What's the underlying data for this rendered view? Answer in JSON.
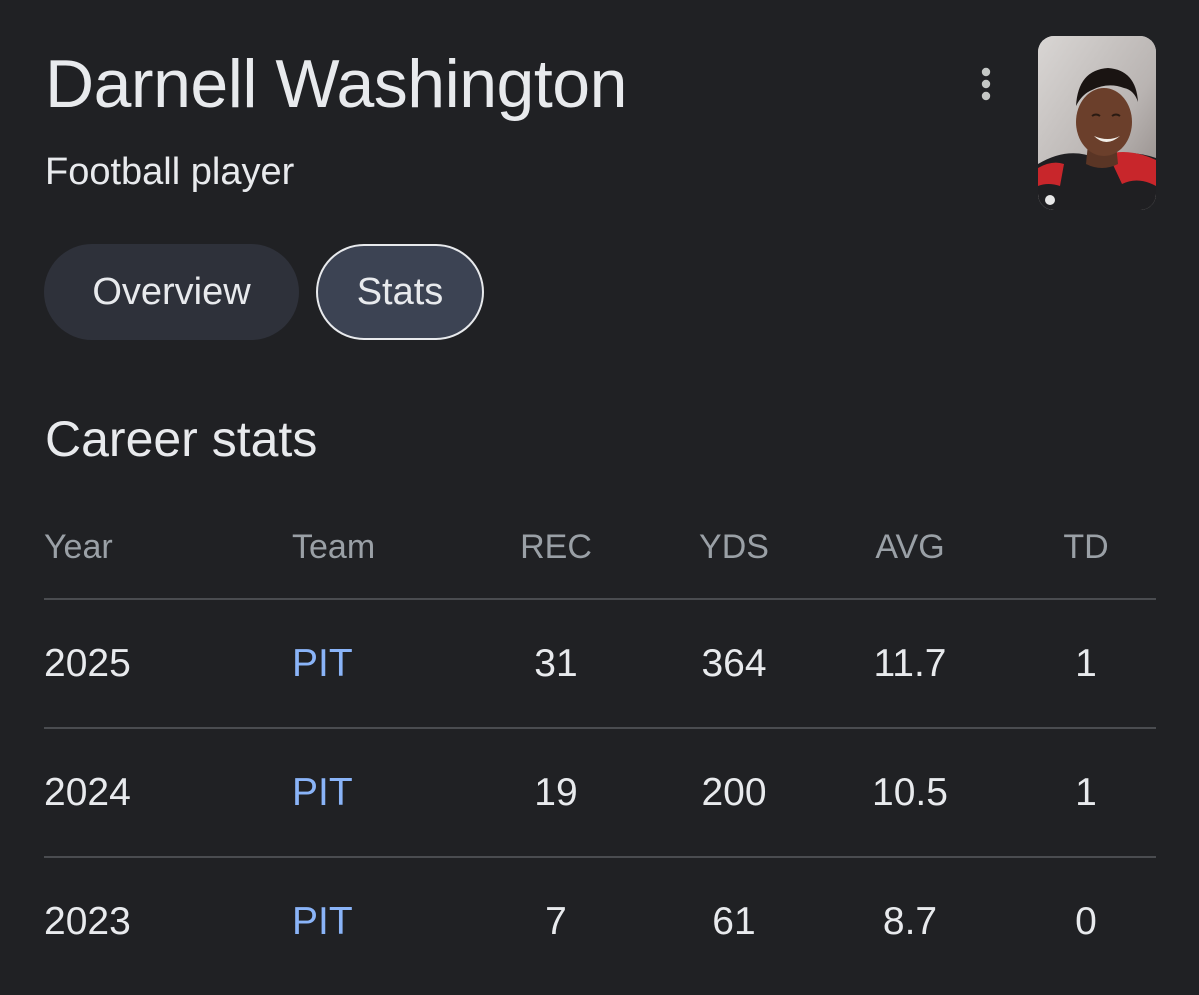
{
  "header": {
    "name": "Darnell Washington",
    "subtitle": "Football player",
    "more_icon": "more-vert-icon",
    "photo": "player-photo"
  },
  "tabs": [
    {
      "label": "Overview",
      "selected": false
    },
    {
      "label": "Stats",
      "selected": true
    }
  ],
  "career_stats": {
    "title": "Career stats",
    "columns": [
      "Year",
      "Team",
      "REC",
      "YDS",
      "AVG",
      "TD"
    ],
    "rows": [
      {
        "year": "2025",
        "team": "PIT",
        "rec": "31",
        "yds": "364",
        "avg": "11.7",
        "td": "1"
      },
      {
        "year": "2024",
        "team": "PIT",
        "rec": "19",
        "yds": "200",
        "avg": "10.5",
        "td": "1"
      },
      {
        "year": "2023",
        "team": "PIT",
        "rec": "7",
        "yds": "61",
        "avg": "8.7",
        "td": "0"
      }
    ]
  },
  "colors": {
    "background": "#202124",
    "text": "#e8eaed",
    "muted": "#9aa0a6",
    "link": "#8ab4f8",
    "divider": "#4a4c50"
  }
}
